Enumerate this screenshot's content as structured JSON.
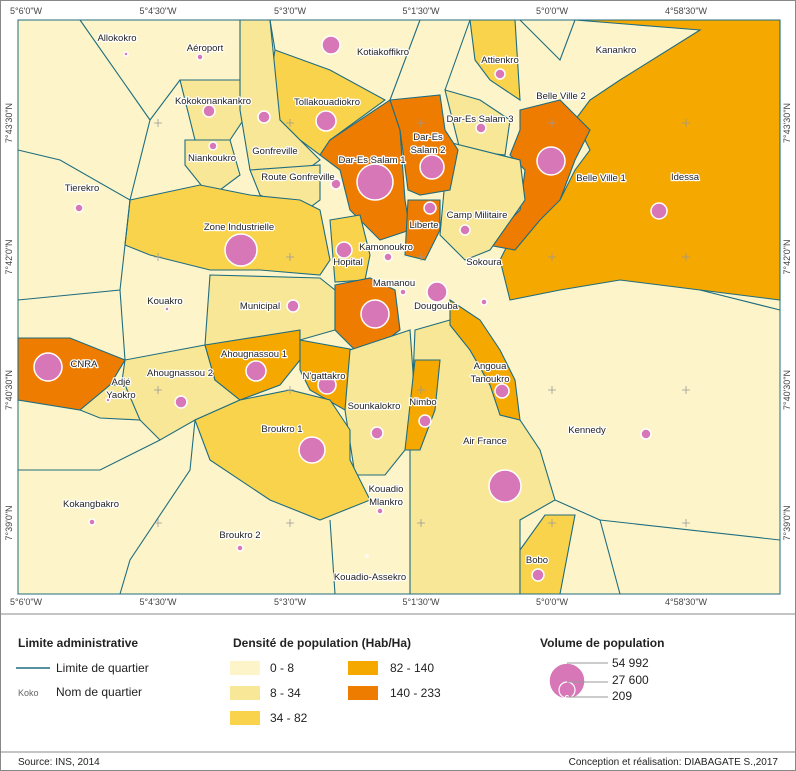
{
  "map": {
    "lon_ticks": [
      "5°6'0\"W",
      "5°4'30\"W",
      "5°3'0\"W",
      "5°1'30\"W",
      "5°0'0\"W",
      "4°58'30\"W"
    ],
    "lat_ticks": [
      "7°43'30\"N",
      "7°42'0\"N",
      "7°40'30\"N",
      "7°39'0\"N"
    ],
    "quartiers": [
      [
        "Allokokro"
      ],
      [
        "Aéroport"
      ],
      [
        "Kotiakoffikro"
      ],
      [
        "Attienkro"
      ],
      [
        "Kanankro"
      ],
      [
        "Belle Ville 2"
      ],
      [
        "Kokokonankankro"
      ],
      [
        "Tollakouadiokro"
      ],
      [
        "Dar-Es Salam 3"
      ],
      [
        "Dar-Es",
        "Salam 2"
      ],
      [
        "Dar-Es Salam 1"
      ],
      [
        "Gonfreville"
      ],
      [
        "Niankoukro"
      ],
      [
        "Route Gonfreville"
      ],
      [
        "Belle Ville 1"
      ],
      [
        "Idessa"
      ],
      [
        "Tierekro"
      ],
      [
        "Camp Militaire"
      ],
      [
        "Liberte"
      ],
      [
        "Zone Industrielle"
      ],
      [
        "Kamonoukro"
      ],
      [
        "Hopital"
      ],
      [
        "Sokoura"
      ],
      [
        "Mamanou"
      ],
      [
        "Dougouba"
      ],
      [
        "Kouakro"
      ],
      [
        "Municipal"
      ],
      [
        "CNRA"
      ],
      [
        "Ahougnassou 1"
      ],
      [
        "Ahougnassou 2"
      ],
      [
        "Adjé",
        "Yaokro"
      ],
      [
        "N'gattakro"
      ],
      [
        "Angoua",
        "Tanoukro"
      ],
      [
        "Sounkalokro"
      ],
      [
        "Nimbo"
      ],
      [
        "Kennedy"
      ],
      [
        "Broukro 1"
      ],
      [
        "Air France"
      ],
      [
        "Kouadio",
        "Mlankro"
      ],
      [
        "Kokangbakro"
      ],
      [
        "Broukro 2"
      ],
      [
        "Bobo"
      ],
      [
        "Kouadio-Assekro"
      ]
    ]
  },
  "legend": {
    "admin_title": "Limite administrative",
    "boundary_label": "Limite de quartier",
    "name_sample": "Koko",
    "name_label": "Nom de quartier",
    "density_title": "Densité de population (Hab/Ha)",
    "density_classes": [
      "0 - 8",
      "8 - 34",
      "34 - 82",
      "82 - 140",
      "140 - 233"
    ],
    "volume_title": "Volume de population",
    "volume_values": [
      "54 992",
      "27 600",
      "209"
    ]
  },
  "footer": {
    "source": "Source: INS, 2014",
    "credit": "Conception et réalisation: DIABAGATE S.,2017"
  }
}
